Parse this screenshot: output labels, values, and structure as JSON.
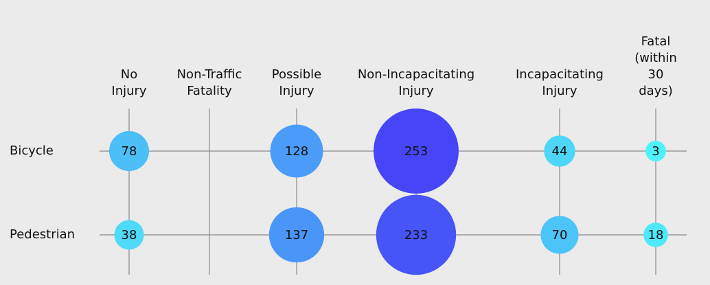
{
  "chart_data": {
    "type": "bubble-matrix",
    "categories": [
      "No Injury",
      "Non-Traffic Fatality",
      "Possible Injury",
      "Non-Incapacitating Injury",
      "Incapacitating Injury",
      "Fatal (within 30 days)"
    ],
    "series": [
      {
        "name": "Bicycle",
        "values": [
          78,
          null,
          128,
          253,
          44,
          3
        ]
      },
      {
        "name": "Pedestrian",
        "values": [
          38,
          null,
          137,
          233,
          70,
          18
        ]
      }
    ],
    "color_range": [
      "#4ff2f8",
      "#4646f8"
    ]
  }
}
